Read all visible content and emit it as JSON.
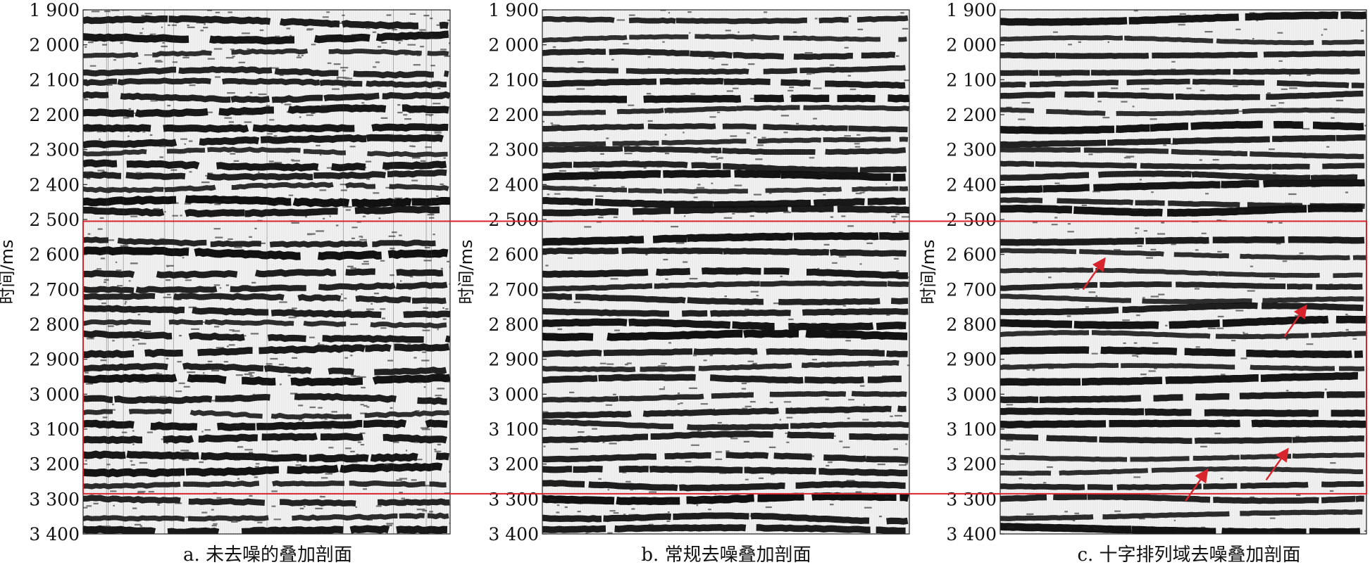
{
  "panels": [
    {
      "id": "a",
      "caption": "a. 未去噪的叠加剖面",
      "ylabel": "时间/ms",
      "noise_level": 0.9,
      "arrows": []
    },
    {
      "id": "b",
      "caption": "b. 常规去噪叠加剖面",
      "ylabel": "时间/ms",
      "noise_level": 0.45,
      "arrows": []
    },
    {
      "id": "c",
      "caption": "c. 十字排列域去噪叠加剖面",
      "ylabel": "时间/ms",
      "noise_level": 0.3,
      "arrows": [
        {
          "x": 0.28,
          "t": 2620
        },
        {
          "x": 0.83,
          "t": 2755
        },
        {
          "x": 0.78,
          "t": 3165
        },
        {
          "x": 0.56,
          "t": 3225
        }
      ]
    }
  ],
  "highlight_box": {
    "t_start": 2505,
    "t_end": 3285,
    "color": "#d8242c"
  },
  "arrow_color": "#d8242c",
  "chart_data": {
    "type": "heatmap",
    "ylim": [
      1900,
      3400
    ],
    "y_ticks": [
      "1 900",
      "2 000",
      "2 100",
      "2 200",
      "2 300",
      "2 400",
      "2 500",
      "2 600",
      "2 700",
      "2 800",
      "2 900",
      "3 000",
      "3 100",
      "3 200",
      "3 300",
      "3 400"
    ],
    "y_tick_values": [
      1900,
      2000,
      2100,
      2200,
      2300,
      2400,
      2500,
      2600,
      2700,
      2800,
      2900,
      3000,
      3100,
      3200,
      3300,
      3400
    ],
    "ylabel": "时间/ms",
    "reflector_times_ms": [
      1930,
      1985,
      2025,
      2075,
      2110,
      2150,
      2190,
      2240,
      2280,
      2305,
      2345,
      2375,
      2410,
      2450,
      2475,
      2560,
      2595,
      2650,
      2695,
      2725,
      2760,
      2800,
      2830,
      2880,
      2925,
      2960,
      3010,
      3055,
      3085,
      3125,
      3180,
      3220,
      3260,
      3300,
      3350,
      3385
    ]
  }
}
